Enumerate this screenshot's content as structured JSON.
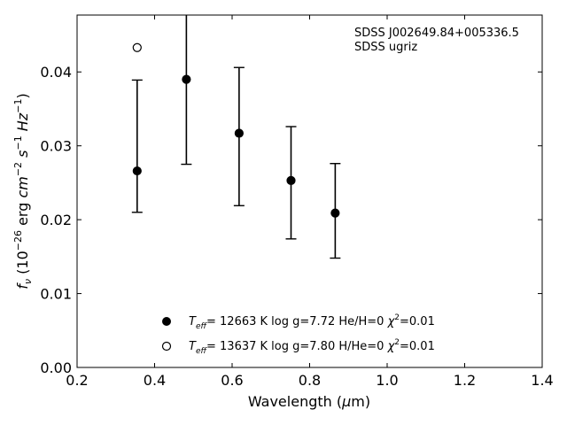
{
  "chart_data": {
    "type": "scatter",
    "title": "",
    "xlabel": "Wavelength (μm)",
    "ylabel": "f_ν (10^-26 erg cm^-2 s^-1 Hz^-1)",
    "xlim": [
      0.2,
      1.4
    ],
    "ylim": [
      0.0,
      0.0477
    ],
    "xticks": [
      0.2,
      0.4,
      0.6,
      0.8,
      1.0,
      1.2,
      1.4
    ],
    "yticks": [
      0.0,
      0.01,
      0.02,
      0.03,
      0.04
    ],
    "xtick_labels": [
      "0.2",
      "0.4",
      "0.6",
      "0.8",
      "1.0",
      "1.2",
      "1.4"
    ],
    "ytick_labels": [
      "0.00",
      "0.01",
      "0.02",
      "0.03",
      "0.04"
    ],
    "grid": false,
    "legend_position": "lower-center",
    "annotations": [
      "SDSS J002649.84+005336.5",
      "SDSS ugriz"
    ],
    "observed": {
      "x": [
        0.355,
        0.482,
        0.618,
        0.752,
        0.866
      ],
      "y_upper": [
        0.0389,
        0.0478,
        0.0406,
        0.0326,
        0.0276
      ],
      "y_lower": [
        0.021,
        0.0275,
        0.0219,
        0.0174,
        0.0148
      ]
    },
    "series": [
      {
        "label": {
          "pre": "T",
          "sub": "eff",
          "rest": "= 12663 K  log g=7.72  He/H=0  ",
          "chi_sym": "χ",
          "chi_sup": "2",
          "chi_val": "=0.01"
        },
        "marker": "filled-circle",
        "color": "#000000",
        "x": [
          0.355,
          0.482,
          0.618,
          0.752,
          0.866
        ],
        "y": [
          0.0266,
          0.039,
          0.0317,
          0.0253,
          0.0209
        ]
      },
      {
        "label": {
          "pre": "T",
          "sub": "eff",
          "rest": "= 13637 K  log g=7.80  H/He=0  ",
          "chi_sym": "χ",
          "chi_sup": "2",
          "chi_val": "=0.01"
        },
        "marker": "open-circle",
        "color": "#000000",
        "x": [
          0.355
        ],
        "y": [
          0.0433
        ]
      }
    ]
  }
}
